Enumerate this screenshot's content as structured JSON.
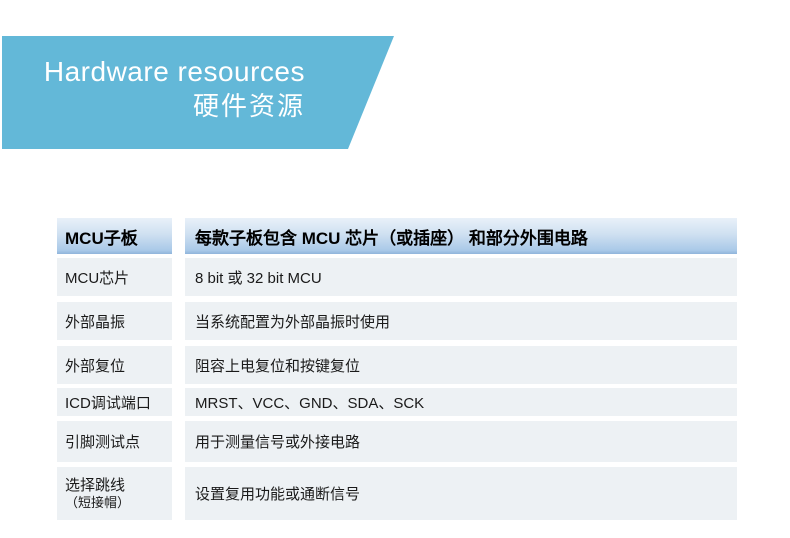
{
  "banner": {
    "title_en": "Hardware resources",
    "title_zh": "硬件资源",
    "bg_color": "#63b8d8",
    "text_color": "#ffffff"
  },
  "table": {
    "header": {
      "label": "MCU子板",
      "value": "每款子板包含 MCU 芯片（或插座） 和部分外围电路"
    },
    "rows": [
      {
        "label": "MCU芯片",
        "value": "8 bit 或 32 bit MCU"
      },
      {
        "label": "外部晶振",
        "value": "当系统配置为外部晶振时使用"
      },
      {
        "label": "外部复位",
        "value": "阻容上电复位和按键复位"
      },
      {
        "label": "ICD调试端口",
        "value": "MRST、VCC、GND、SDA、SCK"
      },
      {
        "label": "引脚测试点",
        "value": "用于测量信号或外接电路"
      },
      {
        "label": "选择跳线",
        "label_note": "（短接帽）",
        "value": "设置复用功能或通断信号"
      }
    ],
    "colors": {
      "header_gradient_top": "#e9f1f9",
      "header_gradient_bottom": "#8fb4db",
      "row_bg": "#edf1f4"
    }
  }
}
